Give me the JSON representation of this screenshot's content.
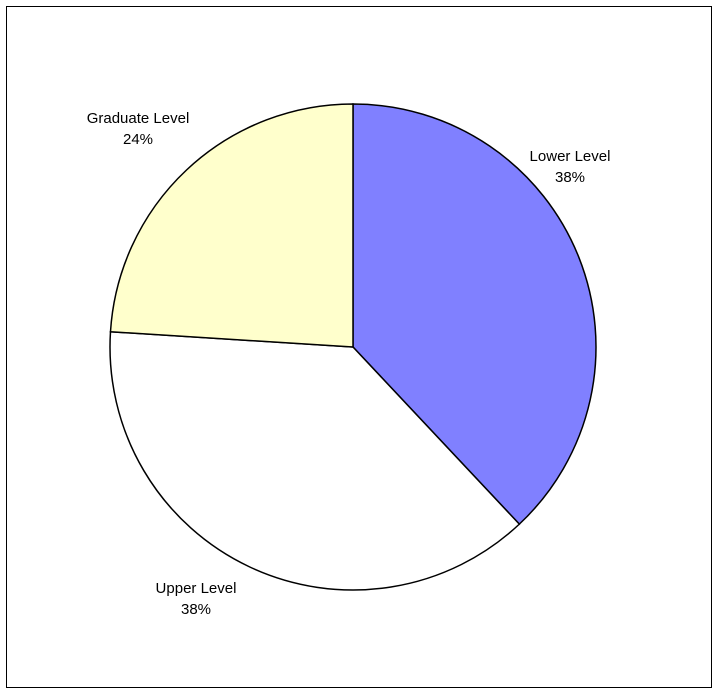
{
  "chart_data": {
    "type": "pie",
    "categories": [
      "Lower Level",
      "Upper Level",
      "Graduate Level"
    ],
    "values": [
      38,
      38,
      24
    ],
    "labels": [
      "38%",
      "38%",
      "24%"
    ],
    "colors": [
      "#8080FF",
      "#FFFFFF",
      "#FFFFCC"
    ],
    "title": "",
    "legend": "none",
    "start_angle_deg": 0,
    "direction": "clockwise"
  }
}
